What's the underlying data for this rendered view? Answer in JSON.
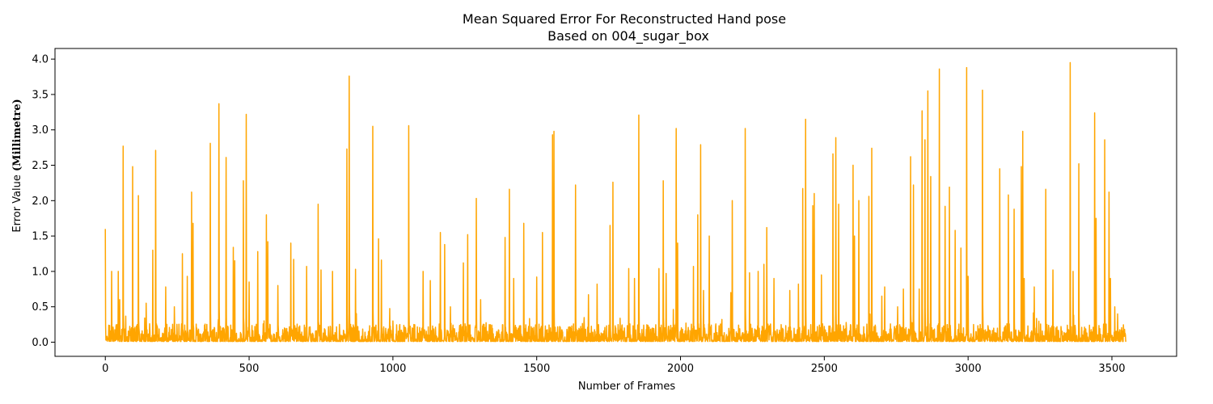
{
  "chart_data": {
    "type": "line",
    "title": "Mean Squared Error For Reconstructed Hand pose",
    "subtitle": "Based on 004_sugar_box",
    "xlabel": "Number of Frames",
    "ylabel_prefix": "Error Value ",
    "ylabel_unit": "(Millimetre)",
    "xlim": [
      -175,
      3725
    ],
    "ylim": [
      -0.2,
      4.15
    ],
    "x_ticks": [
      0,
      500,
      1000,
      1500,
      2000,
      2500,
      3000,
      3500
    ],
    "y_ticks": [
      0.0,
      0.5,
      1.0,
      1.5,
      2.0,
      2.5,
      3.0,
      3.5,
      4.0
    ],
    "y_tick_labels": [
      "0.0",
      "0.5",
      "1.0",
      "1.5",
      "2.0",
      "2.5",
      "3.0",
      "3.5",
      "4.0"
    ],
    "grid": false,
    "legend": "none",
    "frame_count": 3550,
    "baseline_noise": [
      0.0,
      0.25
    ],
    "series": [
      {
        "color": "#FFA500",
        "peaks": [
          [
            0,
            1.6
          ],
          [
            22,
            1.0
          ],
          [
            45,
            1.0
          ],
          [
            50,
            0.6
          ],
          [
            62,
            2.77
          ],
          [
            95,
            2.48
          ],
          [
            115,
            2.07
          ],
          [
            142,
            0.55
          ],
          [
            165,
            1.3
          ],
          [
            175,
            2.71
          ],
          [
            210,
            0.78
          ],
          [
            240,
            0.5
          ],
          [
            268,
            1.25
          ],
          [
            285,
            0.93
          ],
          [
            300,
            2.12
          ],
          [
            305,
            1.68
          ],
          [
            365,
            2.81
          ],
          [
            395,
            3.37
          ],
          [
            420,
            2.61
          ],
          [
            445,
            1.34
          ],
          [
            450,
            1.15
          ],
          [
            480,
            2.28
          ],
          [
            490,
            3.22
          ],
          [
            500,
            0.85
          ],
          [
            530,
            1.28
          ],
          [
            560,
            1.8
          ],
          [
            565,
            1.42
          ],
          [
            600,
            0.8
          ],
          [
            645,
            1.4
          ],
          [
            655,
            1.17
          ],
          [
            700,
            1.07
          ],
          [
            740,
            1.95
          ],
          [
            750,
            1.02
          ],
          [
            790,
            1.0
          ],
          [
            840,
            2.73
          ],
          [
            848,
            3.76
          ],
          [
            870,
            1.03
          ],
          [
            930,
            3.05
          ],
          [
            950,
            1.46
          ],
          [
            960,
            1.16
          ],
          [
            1000,
            0.3
          ],
          [
            1055,
            3.06
          ],
          [
            1105,
            1.0
          ],
          [
            1130,
            0.87
          ],
          [
            1165,
            1.55
          ],
          [
            1180,
            1.38
          ],
          [
            1200,
            0.5
          ],
          [
            1245,
            1.12
          ],
          [
            1260,
            1.52
          ],
          [
            1290,
            2.03
          ],
          [
            1305,
            0.6
          ],
          [
            1390,
            1.48
          ],
          [
            1405,
            2.16
          ],
          [
            1420,
            0.9
          ],
          [
            1455,
            1.68
          ],
          [
            1500,
            0.92
          ],
          [
            1520,
            1.55
          ],
          [
            1555,
            2.93
          ],
          [
            1560,
            2.98
          ],
          [
            1635,
            2.22
          ],
          [
            1680,
            0.67
          ],
          [
            1710,
            0.82
          ],
          [
            1755,
            1.65
          ],
          [
            1765,
            2.26
          ],
          [
            1820,
            1.04
          ],
          [
            1840,
            0.9
          ],
          [
            1855,
            3.21
          ],
          [
            1925,
            1.04
          ],
          [
            1940,
            2.28
          ],
          [
            1950,
            0.97
          ],
          [
            1985,
            3.02
          ],
          [
            1990,
            1.4
          ],
          [
            2045,
            1.07
          ],
          [
            2060,
            1.8
          ],
          [
            2070,
            2.79
          ],
          [
            2080,
            0.73
          ],
          [
            2100,
            1.5
          ],
          [
            2175,
            0.7
          ],
          [
            2180,
            2.0
          ],
          [
            2225,
            3.02
          ],
          [
            2240,
            0.98
          ],
          [
            2270,
            1.0
          ],
          [
            2290,
            1.1
          ],
          [
            2300,
            1.62
          ],
          [
            2325,
            0.9
          ],
          [
            2380,
            0.73
          ],
          [
            2410,
            0.82
          ],
          [
            2425,
            2.17
          ],
          [
            2435,
            3.15
          ],
          [
            2460,
            1.93
          ],
          [
            2465,
            2.1
          ],
          [
            2490,
            0.95
          ],
          [
            2530,
            2.66
          ],
          [
            2540,
            2.89
          ],
          [
            2550,
            1.95
          ],
          [
            2600,
            2.5
          ],
          [
            2605,
            1.5
          ],
          [
            2620,
            2.0
          ],
          [
            2655,
            2.06
          ],
          [
            2665,
            2.74
          ],
          [
            2700,
            0.65
          ],
          [
            2710,
            0.78
          ],
          [
            2755,
            0.5
          ],
          [
            2775,
            0.75
          ],
          [
            2800,
            2.62
          ],
          [
            2810,
            2.22
          ],
          [
            2830,
            0.75
          ],
          [
            2840,
            3.27
          ],
          [
            2850,
            2.86
          ],
          [
            2860,
            3.55
          ],
          [
            2870,
            2.34
          ],
          [
            2900,
            3.86
          ],
          [
            2920,
            1.92
          ],
          [
            2935,
            2.19
          ],
          [
            2955,
            1.58
          ],
          [
            2975,
            1.33
          ],
          [
            2995,
            3.88
          ],
          [
            3000,
            0.93
          ],
          [
            3050,
            3.56
          ],
          [
            3110,
            2.45
          ],
          [
            3140,
            2.08
          ],
          [
            3160,
            1.88
          ],
          [
            3185,
            2.48
          ],
          [
            3190,
            2.98
          ],
          [
            3195,
            0.9
          ],
          [
            3230,
            0.78
          ],
          [
            3270,
            2.16
          ],
          [
            3295,
            1.02
          ],
          [
            3355,
            3.95
          ],
          [
            3365,
            1.0
          ],
          [
            3385,
            2.52
          ],
          [
            3440,
            3.24
          ],
          [
            3445,
            1.75
          ],
          [
            3475,
            2.86
          ],
          [
            3490,
            2.12
          ],
          [
            3495,
            0.9
          ],
          [
            3510,
            0.5
          ],
          [
            3520,
            0.4
          ]
        ]
      }
    ]
  }
}
